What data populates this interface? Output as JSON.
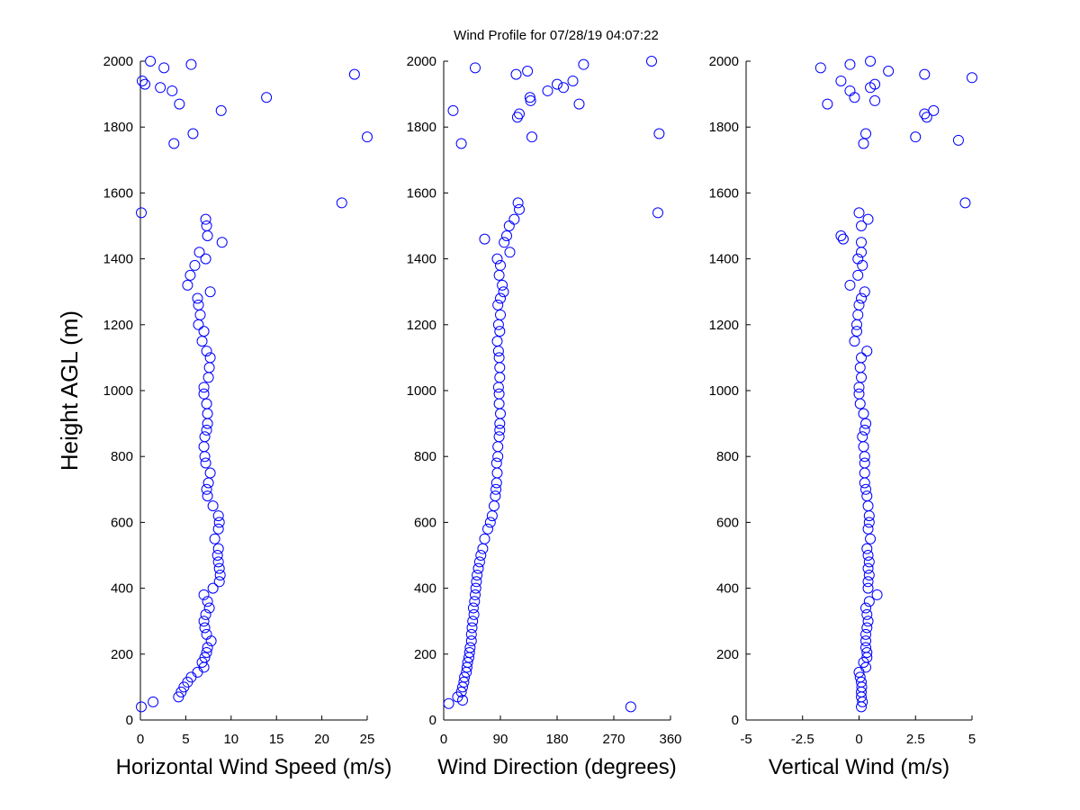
{
  "chart_data": [
    {
      "type": "scatter",
      "title": "Wind Profile for  07/28/19 04:07:22",
      "ylabel": "Height AGL (m)",
      "xlabel": "Horizontal Wind Speed (m/s)",
      "color": "#0000ff",
      "xlim": [
        0,
        25
      ],
      "xticks": [
        0,
        5,
        10,
        15,
        20,
        25
      ],
      "ylim": [
        0,
        2000
      ],
      "yticks": [
        0,
        200,
        400,
        600,
        800,
        1000,
        1200,
        1400,
        1600,
        1800,
        2000
      ],
      "x": [
        0.1,
        1.4,
        4.2,
        4.5,
        4.8,
        5.2,
        5.6,
        6.3,
        7,
        6.8,
        7.1,
        7.3,
        7.4,
        7.8,
        7.3,
        7.1,
        7,
        7.2,
        7.6,
        7.4,
        7,
        8,
        8.7,
        8.8,
        8.7,
        8.6,
        8.5,
        8.6,
        8.2,
        8.6,
        8.7,
        8.6,
        8,
        7.4,
        7.3,
        7.5,
        7.7,
        7.2,
        7.1,
        7,
        7.1,
        7.3,
        7.4,
        7.4,
        7.3,
        7,
        7,
        7.5,
        7.6,
        7.7,
        7.3,
        6.8,
        7,
        6.4,
        6.6,
        6.4,
        6.3,
        7.7,
        5.2,
        5.5,
        6,
        7.2,
        6.5,
        9,
        7.4,
        7.3,
        7.2,
        0.1,
        22.2,
        3.7,
        25,
        5.8,
        8.9,
        4.3,
        13.9,
        3.5,
        2.2,
        0.5,
        0.2,
        23.6,
        2.6,
        5.6,
        1.1
      ],
      "y": [
        40,
        55,
        70,
        85,
        100,
        115,
        130,
        145,
        160,
        175,
        190,
        205,
        220,
        240,
        260,
        280,
        300,
        320,
        340,
        360,
        380,
        400,
        420,
        440,
        460,
        480,
        500,
        520,
        550,
        580,
        600,
        620,
        650,
        680,
        700,
        720,
        750,
        780,
        800,
        830,
        860,
        880,
        900,
        930,
        960,
        990,
        1010,
        1040,
        1070,
        1100,
        1120,
        1150,
        1180,
        1200,
        1230,
        1260,
        1280,
        1300,
        1320,
        1350,
        1380,
        1400,
        1420,
        1450,
        1470,
        1500,
        1520,
        1540,
        1570,
        1750,
        1770,
        1780,
        1850,
        1870,
        1890,
        1910,
        1920,
        1930,
        1940,
        1960,
        1980,
        1990,
        2000
      ]
    },
    {
      "type": "scatter",
      "xlabel": "Wind Direction (degrees)",
      "color": "#0000ff",
      "xlim": [
        0,
        360
      ],
      "xticks": [
        0,
        90,
        180,
        270,
        360
      ],
      "ylim": [
        0,
        2000
      ],
      "yticks": [
        0,
        200,
        400,
        600,
        800,
        1000,
        1200,
        1400,
        1600,
        1800,
        2000
      ],
      "x": [
        297,
        8,
        30,
        22,
        28,
        30,
        32,
        33,
        36,
        37,
        38,
        40,
        41,
        42,
        44,
        44,
        45,
        46,
        48,
        47,
        49,
        50,
        51,
        52,
        53,
        55,
        57,
        59,
        62,
        65,
        70,
        74,
        77,
        80,
        82,
        83,
        84,
        85,
        84,
        86,
        86,
        88,
        89,
        89,
        90,
        88,
        88,
        87,
        89,
        89,
        88,
        87,
        85,
        89,
        87,
        90,
        86,
        90,
        95,
        93,
        88,
        90,
        85,
        105,
        96,
        65,
        100,
        104,
        112,
        340,
        120,
        118,
        28,
        140,
        342,
        117,
        120,
        15,
        215,
        138,
        137,
        165,
        190,
        180,
        205,
        115,
        133,
        50,
        222,
        330
      ],
      "y": [
        40,
        50,
        60,
        70,
        85,
        100,
        115,
        130,
        145,
        160,
        175,
        190,
        205,
        220,
        240,
        260,
        280,
        300,
        320,
        340,
        360,
        380,
        400,
        420,
        440,
        460,
        480,
        500,
        520,
        550,
        580,
        600,
        620,
        650,
        680,
        700,
        720,
        750,
        780,
        800,
        830,
        860,
        880,
        900,
        930,
        960,
        990,
        1010,
        1040,
        1070,
        1100,
        1120,
        1150,
        1180,
        1200,
        1230,
        1260,
        1280,
        1300,
        1320,
        1350,
        1380,
        1400,
        1420,
        1450,
        1460,
        1470,
        1500,
        1520,
        1540,
        1550,
        1570,
        1750,
        1770,
        1780,
        1830,
        1840,
        1850,
        1870,
        1880,
        1890,
        1910,
        1920,
        1930,
        1940,
        1960,
        1970,
        1980,
        1990,
        2000
      ]
    },
    {
      "type": "scatter",
      "xlabel": "Vertical Wind (m/s)",
      "color": "#0000ff",
      "xlim": [
        -5,
        5
      ],
      "xticks": [
        -5,
        -2.5,
        0,
        2.5,
        5
      ],
      "ylim": [
        0,
        2000
      ],
      "yticks": [
        0,
        200,
        400,
        600,
        800,
        1000,
        1200,
        1400,
        1600,
        1800,
        2000
      ],
      "x": [
        0.1,
        0.15,
        0.1,
        0.1,
        0.12,
        0.1,
        0.05,
        0,
        0.3,
        0.2,
        0.35,
        0.35,
        0.3,
        0.3,
        0.3,
        0.35,
        0.4,
        0.35,
        0.3,
        0.45,
        0.8,
        0.4,
        0.4,
        0.45,
        0.4,
        0.45,
        0.4,
        0.35,
        0.5,
        0.4,
        0.45,
        0.45,
        0.4,
        0.35,
        0.3,
        0.25,
        0.25,
        0.25,
        0.25,
        0.2,
        0.15,
        0.25,
        0.3,
        0.2,
        0.05,
        0,
        0,
        0.1,
        0.05,
        0.1,
        0.35,
        -0.2,
        -0.1,
        -0.1,
        -0.05,
        0,
        0.1,
        0.25,
        -0.4,
        -0.05,
        0.15,
        -0.05,
        0.1,
        0.1,
        -0.7,
        -0.8,
        0.1,
        0.4,
        0,
        4.7,
        0.2,
        4.4,
        2.5,
        0.3,
        3,
        2.9,
        3.3,
        -1.4,
        0.7,
        -0.2,
        -0.4,
        0.5,
        0.7,
        -0.8,
        5,
        2.9,
        1.3,
        -1.7,
        -0.4,
        0.5
      ],
      "y": [
        40,
        55,
        70,
        85,
        100,
        115,
        130,
        145,
        160,
        175,
        190,
        205,
        220,
        240,
        260,
        280,
        300,
        320,
        340,
        360,
        380,
        400,
        420,
        440,
        460,
        480,
        500,
        520,
        550,
        580,
        600,
        620,
        650,
        680,
        700,
        720,
        750,
        780,
        800,
        830,
        860,
        880,
        900,
        930,
        960,
        990,
        1010,
        1040,
        1070,
        1100,
        1120,
        1150,
        1180,
        1200,
        1230,
        1260,
        1280,
        1300,
        1320,
        1350,
        1380,
        1400,
        1420,
        1450,
        1460,
        1470,
        1500,
        1520,
        1540,
        1570,
        1750,
        1760,
        1770,
        1780,
        1830,
        1840,
        1850,
        1870,
        1880,
        1890,
        1910,
        1920,
        1930,
        1940,
        1950,
        1960,
        1970,
        1980,
        1990,
        2000
      ]
    }
  ]
}
